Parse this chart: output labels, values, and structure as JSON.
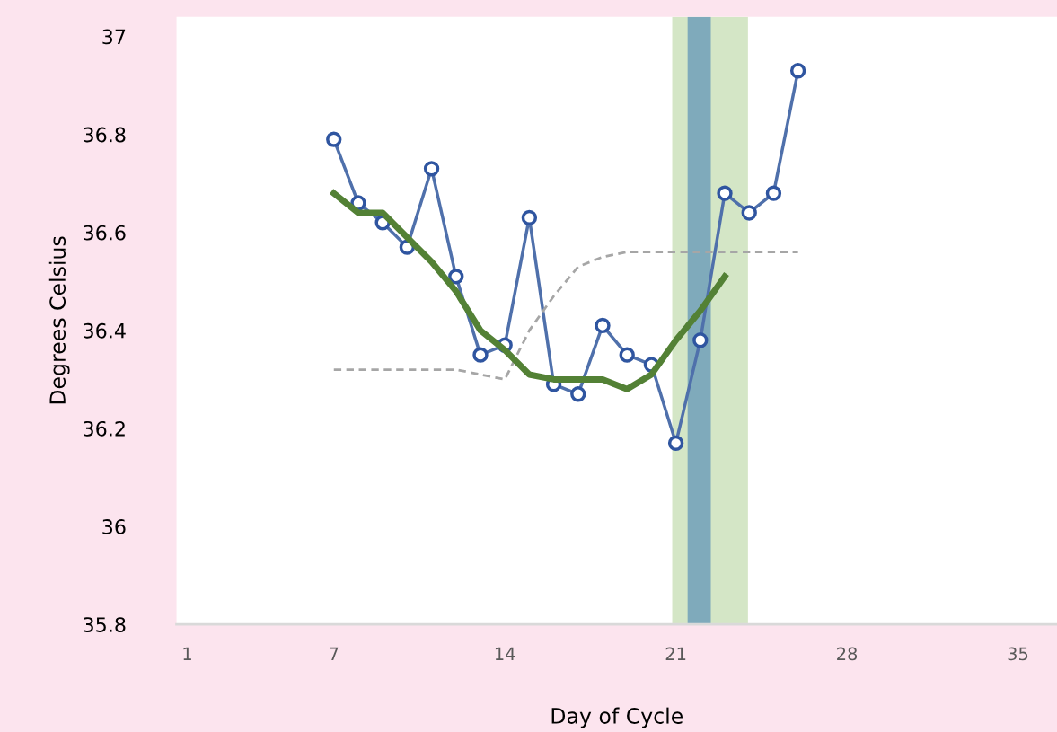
{
  "chart_data": {
    "type": "line",
    "xlabel": "Day of Cycle",
    "ylabel": "Degrees Celsius",
    "xlim": [
      0.56,
      36.6
    ],
    "ylim": [
      35.8,
      37.04
    ],
    "xticks": [
      1,
      7,
      14,
      21,
      28,
      35
    ],
    "yticks": [
      {
        "value": 35.8,
        "label": "35.8"
      },
      {
        "value": 36,
        "label": "36"
      },
      {
        "value": 36.2,
        "label": "36.2"
      },
      {
        "value": 36.4,
        "label": "36.4"
      },
      {
        "value": 36.6,
        "label": "36.6"
      },
      {
        "value": 36.8,
        "label": "36.8"
      },
      {
        "value": 37,
        "label": "37"
      }
    ],
    "grid": false,
    "bands": [
      {
        "axis": "x",
        "from": 20.85,
        "to": 23.95,
        "color": "#d4e6c6"
      },
      {
        "axis": "x",
        "from": 21.48,
        "to": 22.43,
        "color": "#7faabb"
      }
    ],
    "series": [
      {
        "color": "#a6a6a6",
        "line_style": "dashed",
        "marker": "none",
        "x": [
          7,
          8,
          9,
          10,
          11,
          12,
          13,
          14,
          15,
          16,
          17,
          18,
          19,
          20,
          21,
          22,
          23,
          24,
          25,
          26
        ],
        "values": [
          36.32,
          36.32,
          36.32,
          36.32,
          36.32,
          36.32,
          36.31,
          36.3,
          36.4,
          36.47,
          36.53,
          36.55,
          36.56,
          36.56,
          36.56,
          36.56,
          36.56,
          36.56,
          36.56,
          36.56
        ]
      },
      {
        "color": "#4f70ab",
        "line_style": "solid",
        "marker": "circle",
        "x": [
          7,
          8,
          9,
          10,
          11,
          12,
          13,
          14,
          15,
          16,
          17,
          18,
          19,
          20,
          21,
          22,
          23,
          24,
          25,
          26
        ],
        "values": [
          36.79,
          36.66,
          36.62,
          36.57,
          36.73,
          36.51,
          36.35,
          36.37,
          36.63,
          36.29,
          36.27,
          36.41,
          36.35,
          36.33,
          36.17,
          36.38,
          36.68,
          36.64,
          36.68,
          36.93
        ]
      },
      {
        "color": "#538135",
        "line_style": "solid",
        "marker": "none",
        "x": [
          7,
          8,
          9,
          10,
          11,
          12,
          13,
          14,
          15,
          16,
          17,
          18,
          19,
          20,
          21,
          22,
          23
        ],
        "values": [
          36.68,
          36.64,
          36.64,
          36.59,
          36.54,
          36.48,
          36.4,
          36.36,
          36.31,
          36.3,
          36.3,
          36.3,
          36.28,
          36.31,
          36.38,
          36.44,
          36.51
        ]
      }
    ]
  }
}
